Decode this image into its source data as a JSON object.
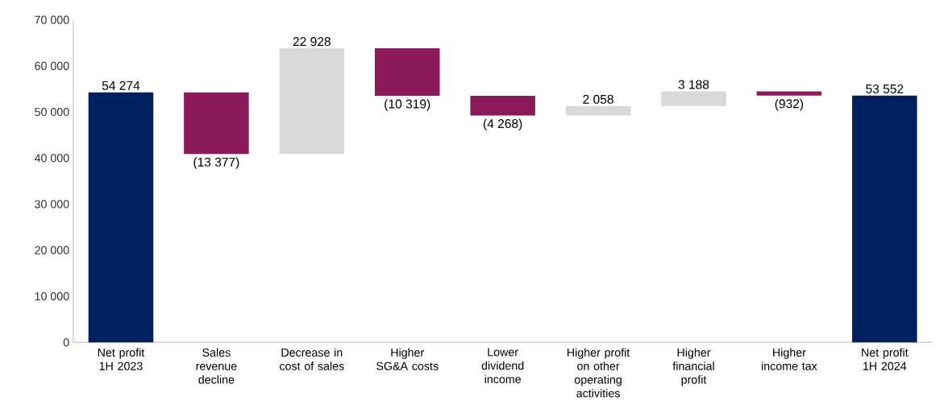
{
  "chart_data": {
    "type": "bar",
    "categories": [
      "Net profit 1H 2023",
      "Sales revenue decline",
      "Decrease in cost of sales",
      "Higher SG&A costs",
      "Lower dividend income",
      "Higher profit on other operating activities",
      "Higher financial profit",
      "Higher income tax",
      "Net profit 1H 2024"
    ],
    "values": [
      54274,
      -13377,
      22928,
      -10319,
      -4268,
      2058,
      3188,
      -932,
      53552
    ],
    "base": [
      0,
      54274,
      40897,
      63825,
      53506,
      49238,
      51296,
      54484,
      0
    ],
    "colors": [
      "#002060",
      "#8b1a5a",
      "#d9d9d9",
      "#8b1a5a",
      "#8b1a5a",
      "#d9d9d9",
      "#d9d9d9",
      "#8b1a5a",
      "#002060"
    ],
    "value_labels": [
      "54 274",
      "(13 377)",
      "22 928",
      "(10 319)",
      "(4 268)",
      "2 058",
      "3 188",
      "(932)",
      "53 552"
    ],
    "ylim": [
      0,
      70000
    ],
    "yticks": [
      {
        "value": 0,
        "label": "0"
      },
      {
        "value": 10000,
        "label": "10 000"
      },
      {
        "value": 20000,
        "label": "20 000"
      },
      {
        "value": 30000,
        "label": "30 000"
      },
      {
        "value": 40000,
        "label": "40 000"
      },
      {
        "value": 50000,
        "label": "50 000"
      },
      {
        "value": 60000,
        "label": "60 000"
      },
      {
        "value": 70000,
        "label": "70 000"
      }
    ],
    "grid": false
  }
}
